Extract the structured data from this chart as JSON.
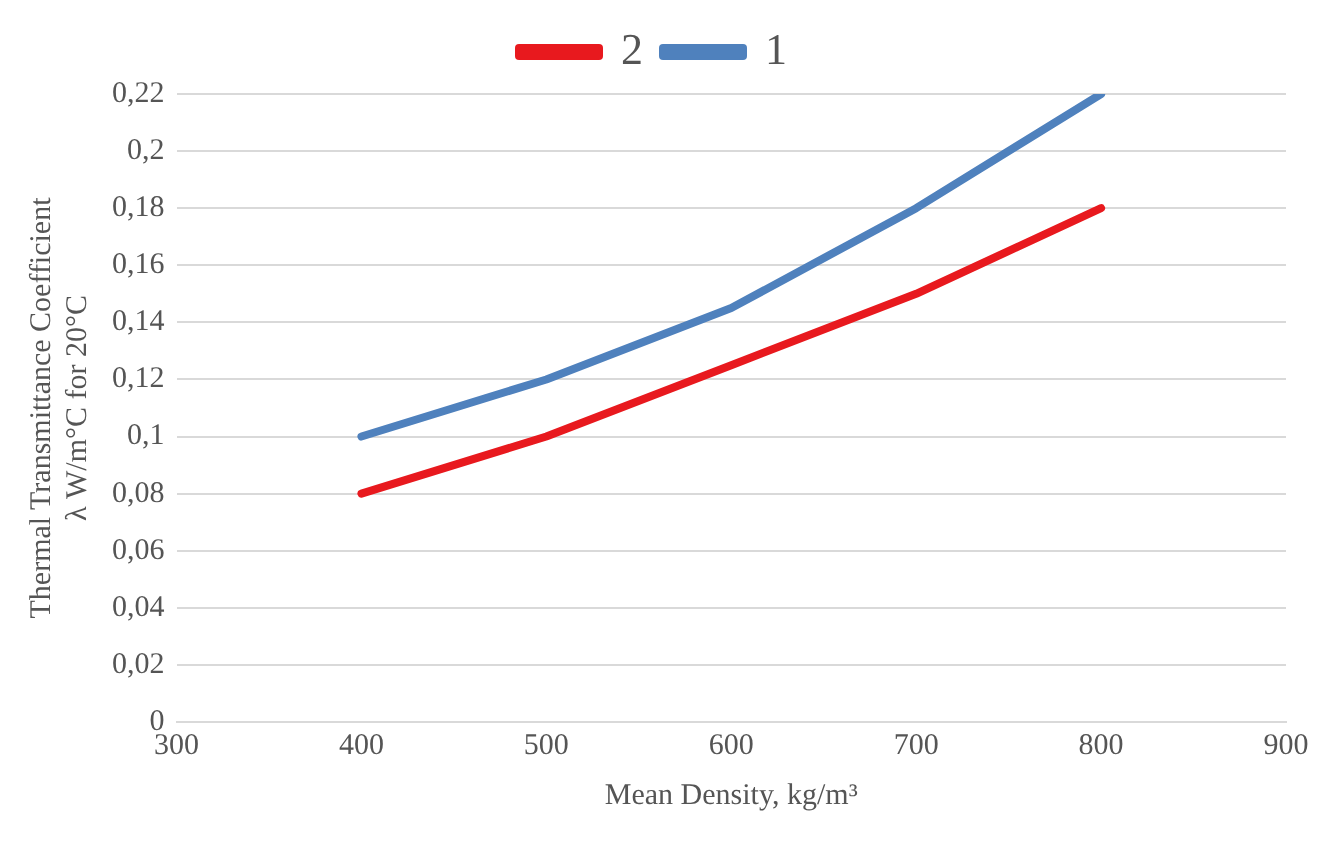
{
  "chart_data": {
    "type": "line",
    "xlabel": "Mean Density, kg/m³",
    "ylabel": "Thermal Transmittance Coefficient\nλ W/m°C for 20°C",
    "x": [
      400,
      500,
      600,
      700,
      800
    ],
    "series": [
      {
        "name": "2",
        "color": "#e8191e",
        "values": [
          0.08,
          0.1,
          0.125,
          0.15,
          0.18
        ]
      },
      {
        "name": "1",
        "color": "#4f81bd",
        "values": [
          0.1,
          0.12,
          0.145,
          0.18,
          0.22
        ]
      }
    ],
    "xlim": [
      300,
      900
    ],
    "xticks": [
      300,
      400,
      500,
      600,
      700,
      800,
      900
    ],
    "ylim": [
      0,
      0.22
    ],
    "yticks": [
      {
        "value": 0,
        "label": "0"
      },
      {
        "value": 0.02,
        "label": "0,02"
      },
      {
        "value": 0.04,
        "label": "0,04"
      },
      {
        "value": 0.06,
        "label": "0,06"
      },
      {
        "value": 0.08,
        "label": "0,08"
      },
      {
        "value": 0.1,
        "label": "0,1"
      },
      {
        "value": 0.12,
        "label": "0,12"
      },
      {
        "value": 0.14,
        "label": "0,14"
      },
      {
        "value": 0.16,
        "label": "0,16"
      },
      {
        "value": 0.18,
        "label": "0,18"
      },
      {
        "value": 0.2,
        "label": "0,2"
      },
      {
        "value": 0.22,
        "label": "0,22"
      }
    ],
    "grid": "y",
    "legend": "top",
    "marker": "none",
    "line_style": "solid"
  }
}
